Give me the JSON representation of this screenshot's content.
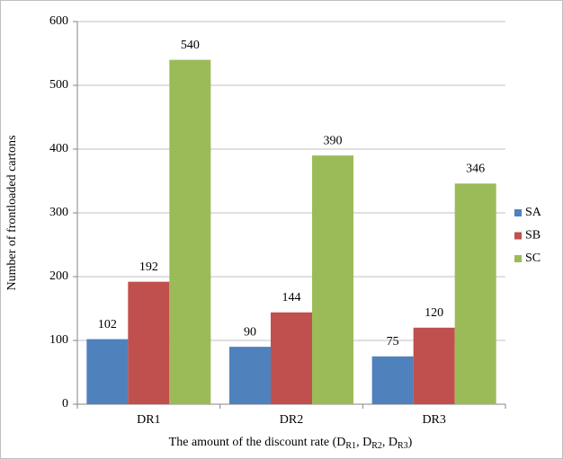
{
  "chart_data": {
    "type": "bar",
    "y_label": "Number of frontloaded cartons",
    "x_label_parts": [
      "The amount of the discount rate (D",
      "R1",
      ", D",
      "R2",
      ", D",
      "R3",
      ")"
    ],
    "categories": [
      "DR1",
      "DR2",
      "DR3"
    ],
    "series": [
      {
        "name": "SA",
        "color": "#4f81bd",
        "values": [
          102,
          90,
          75
        ]
      },
      {
        "name": "SB",
        "color": "#c0504d",
        "values": [
          192,
          144,
          120
        ]
      },
      {
        "name": "SC",
        "color": "#9bbb59",
        "values": [
          540,
          390,
          346
        ]
      }
    ],
    "ylim": [
      0,
      600
    ],
    "yticks": [
      0,
      100,
      200,
      300,
      400,
      500,
      600
    ],
    "grid": true,
    "legend": "right"
  }
}
